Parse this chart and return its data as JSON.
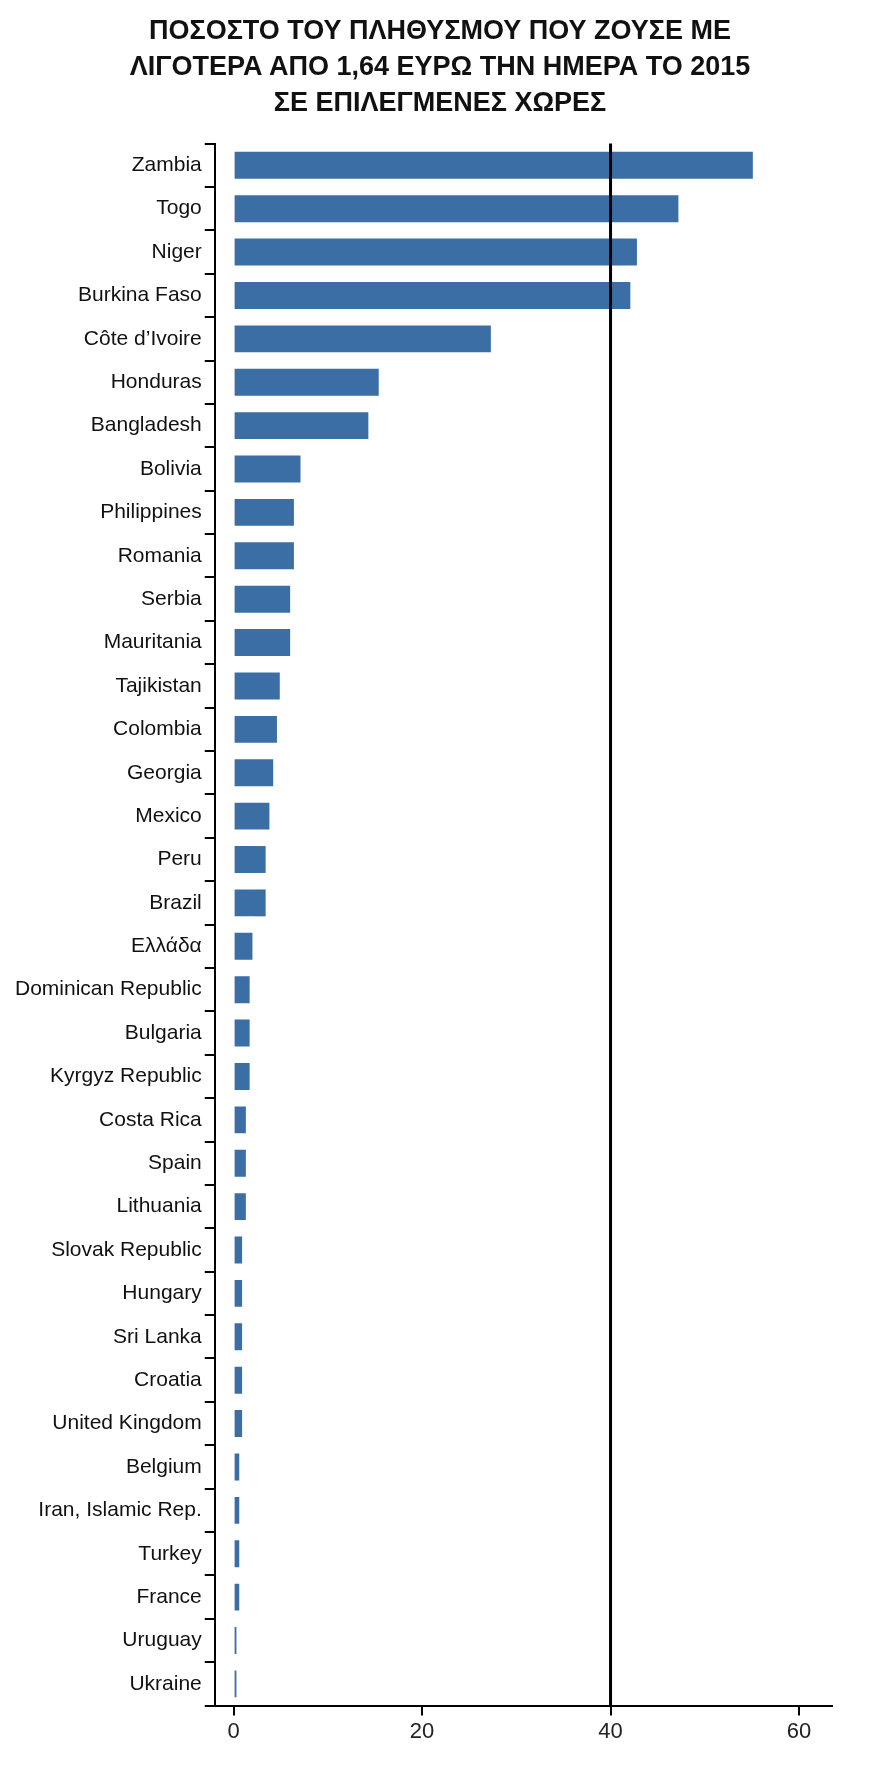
{
  "chart_data": {
    "type": "bar",
    "orientation": "horizontal",
    "title": "ΠΟΣΟΣΤΟ ΤΟΥ ΠΛΗΘΥΣΜΟΥ ΠΟΥ ΖΟΥΣΕ ΜΕ ΛΙΓΟΤΕΡΑ ΑΠΟ 1,64 ΕΥΡΩ ΤΗΝ ΗΜΕΡΑ ΤΟ 2015 ΣΕ ΕΠΙΛΕΓΜΕΝΕΣ ΧΩΡΕΣ",
    "categories": [
      "Zambia",
      "Togo",
      "Niger",
      "Burkina Faso",
      "Côte d’Ivoire",
      "Honduras",
      "Bangladesh",
      "Bolivia",
      "Philippines",
      "Romania",
      "Serbia",
      "Mauritania",
      "Tajikistan",
      "Colombia",
      "Georgia",
      "Mexico",
      "Peru",
      "Brazil",
      "Ελλάδα",
      "Dominican Republic",
      "Bulgaria",
      "Kyrgyz Republic",
      "Costa Rica",
      "Spain",
      "Lithuania",
      "Slovak Republic",
      "Hungary",
      "Sri Lanka",
      "Croatia",
      "United Kingdom",
      "Belgium",
      "Iran, Islamic Rep.",
      "Turkey",
      "France",
      "Uruguay",
      "Ukraine"
    ],
    "values": [
      55.1,
      47.2,
      42.8,
      42.1,
      27.3,
      15.4,
      14.3,
      7.1,
      6.4,
      6.4,
      6.0,
      6.0,
      4.9,
      4.6,
      4.2,
      3.8,
      3.4,
      3.4,
      2.0,
      1.7,
      1.7,
      1.7,
      1.3,
      1.3,
      1.3,
      0.9,
      0.9,
      0.9,
      0.9,
      0.9,
      0.6,
      0.6,
      0.6,
      0.6,
      0.3,
      0.3
    ],
    "color": "#3a6ea5",
    "xlim": [
      -2,
      63.5
    ],
    "xticks": [
      0,
      20,
      40,
      60
    ],
    "ref_lines": [
      {
        "axis": "x",
        "value": 40,
        "color": "#000000"
      }
    ],
    "legend": false
  }
}
